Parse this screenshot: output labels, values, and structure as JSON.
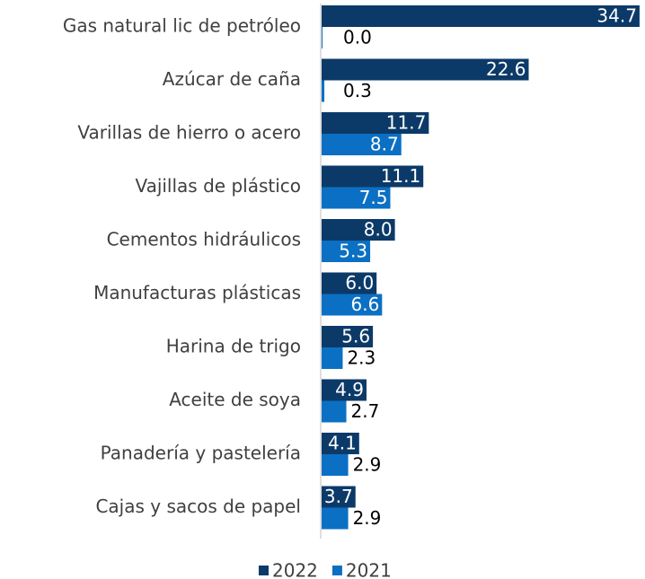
{
  "chart_data": {
    "type": "bar",
    "orientation": "horizontal",
    "categories": [
      "Gas natural lic de petróleo",
      "Azúcar de caña",
      "Varillas de hierro o acero",
      "Vajillas de plástico",
      "Cementos hidráulicos",
      "Manufacturas plásticas",
      "Harina de trigo",
      "Aceite de soya",
      "Panadería y pastelería",
      "Cajas y sacos de papel"
    ],
    "series": [
      {
        "name": "2022",
        "color": "#0c3a68",
        "values": [
          34.7,
          22.6,
          11.7,
          11.1,
          8.0,
          6.0,
          5.6,
          4.9,
          4.1,
          3.7
        ],
        "value_labels": [
          "34.7",
          "22.6",
          "11.7",
          "11.1",
          "8.0",
          "6.0",
          "5.6",
          "4.9",
          "4.1",
          "3.7"
        ]
      },
      {
        "name": "2021",
        "color": "#0b70c3",
        "values": [
          0.0,
          0.3,
          8.7,
          7.5,
          5.3,
          6.6,
          2.3,
          2.7,
          2.9,
          2.9
        ],
        "value_labels": [
          "0.0",
          "0.3",
          "8.7",
          "7.5",
          "5.3",
          "6.6",
          "2.3",
          "2.7",
          "2.9",
          "2.9"
        ]
      }
    ],
    "xlim": [
      0,
      35
    ],
    "legend": "bottom"
  }
}
